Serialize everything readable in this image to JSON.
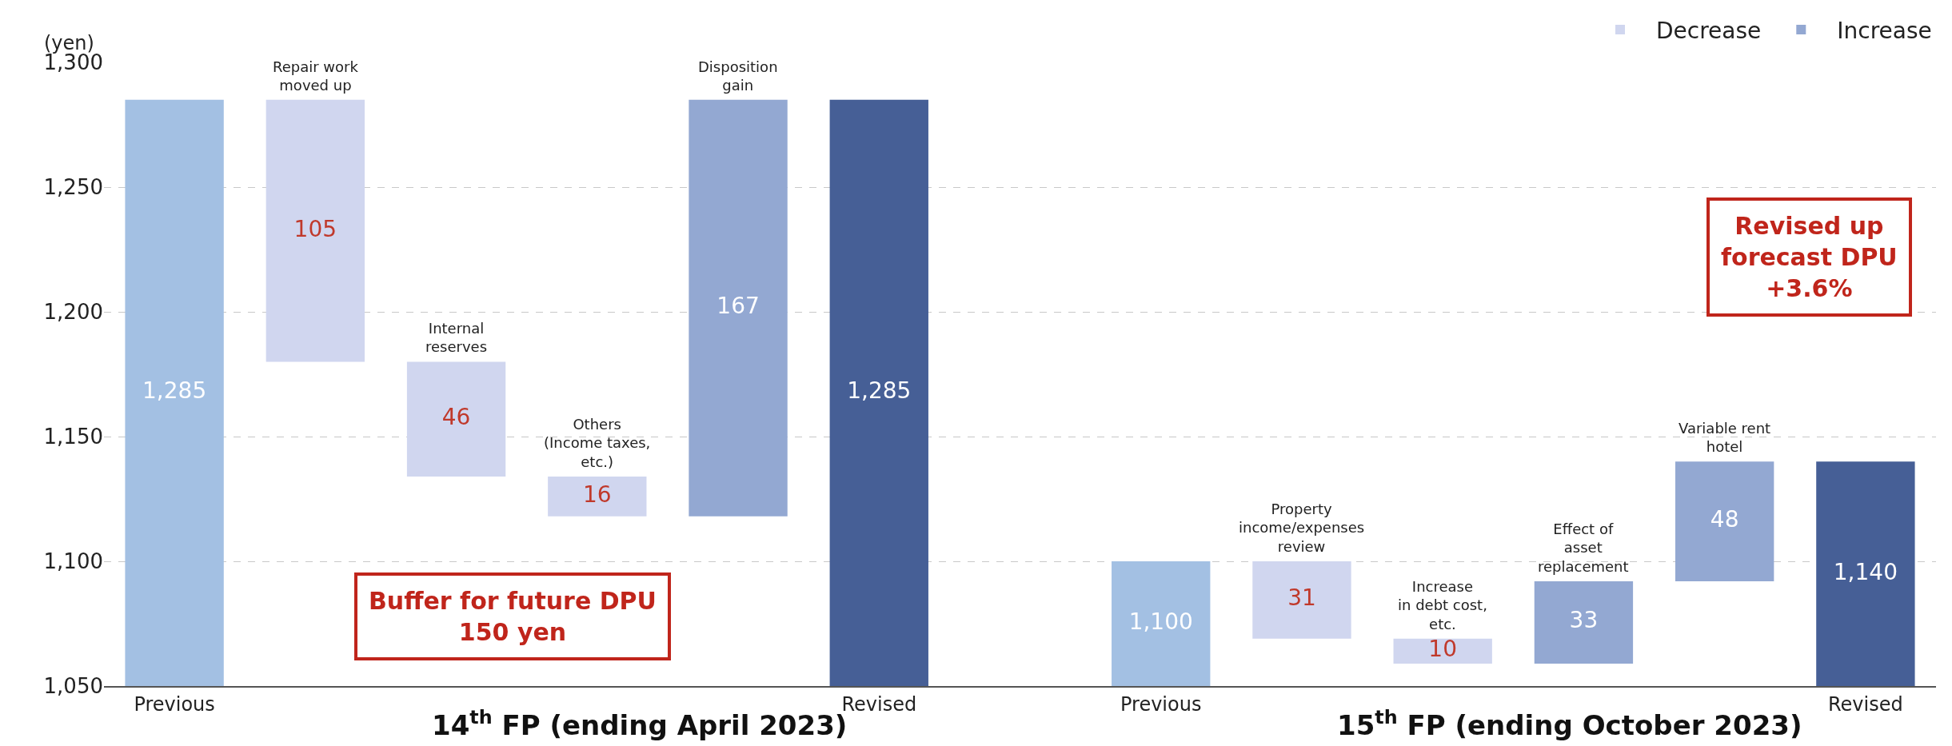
{
  "chart_data": {
    "type": "bar",
    "ylabel": "(yen)",
    "categories": [
      "Previous",
      "Repair work\nmoved up",
      "Internal\nreserves",
      "Others\n(Income taxes,\netc.)",
      "Disposition\ngain",
      "Revised",
      null,
      "Previous",
      "Property\nincome/expenses\nreview",
      "Increase\nin debt cost,\netc.",
      "Effect of\nasset\nreplacement",
      "Variable rent\nhotel",
      "Revised"
    ],
    "series": [
      {
        "colors": [
          "#a3c0e3",
          null,
          null,
          null,
          null,
          "#465f96",
          null,
          "#a3c0e3",
          null,
          null,
          null,
          null,
          "#465f96"
        ],
        "values": [
          1285,
          null,
          null,
          null,
          null,
          1285,
          null,
          1100,
          null,
          null,
          null,
          null,
          1140
        ],
        "value_labels": [
          "1,285",
          null,
          null,
          null,
          null,
          "1,285",
          null,
          "1,100",
          null,
          null,
          null,
          null,
          "1,140"
        ]
      },
      {
        "name": "Decrease",
        "color": "#d0d6ef",
        "base": [
          null,
          1180,
          1134,
          1118,
          null,
          null,
          null,
          null,
          1069,
          1059,
          null,
          null,
          null
        ],
        "values": [
          null,
          105,
          46,
          16,
          null,
          null,
          null,
          null,
          31,
          10,
          null,
          null,
          null
        ],
        "value_labels": [
          null,
          "105",
          "46",
          "16",
          null,
          null,
          null,
          null,
          "31",
          "10",
          null,
          null,
          null
        ]
      },
      {
        "name": "Increase",
        "color": "#93a8d2",
        "base": [
          null,
          null,
          null,
          null,
          1118,
          null,
          null,
          null,
          null,
          null,
          1059,
          1092,
          null
        ],
        "values": [
          null,
          null,
          null,
          null,
          167,
          null,
          null,
          null,
          null,
          null,
          33,
          48,
          null
        ],
        "value_labels": [
          null,
          null,
          null,
          null,
          "167",
          null,
          null,
          null,
          null,
          null,
          "33",
          "48",
          null
        ]
      }
    ],
    "ylim": [
      1050,
      1300
    ],
    "yticks": [
      {
        "value": 1050,
        "label": "1,050"
      },
      {
        "value": 1100,
        "label": "1,100"
      },
      {
        "value": 1150,
        "label": "1,150"
      },
      {
        "value": 1200,
        "label": "1,200"
      },
      {
        "value": 1250,
        "label": "1,250"
      },
      {
        "value": 1300,
        "label": "1,300"
      }
    ],
    "grid": "y",
    "legend": "top right",
    "annotations": [
      "14$^{th}$ FP (ending April 2023)",
      "15$^{th}$ FP (ending October 2023)",
      "Buffer for future DPU\n150 yen",
      "Revised up\nforecast DPU\n+3.6%"
    ]
  }
}
